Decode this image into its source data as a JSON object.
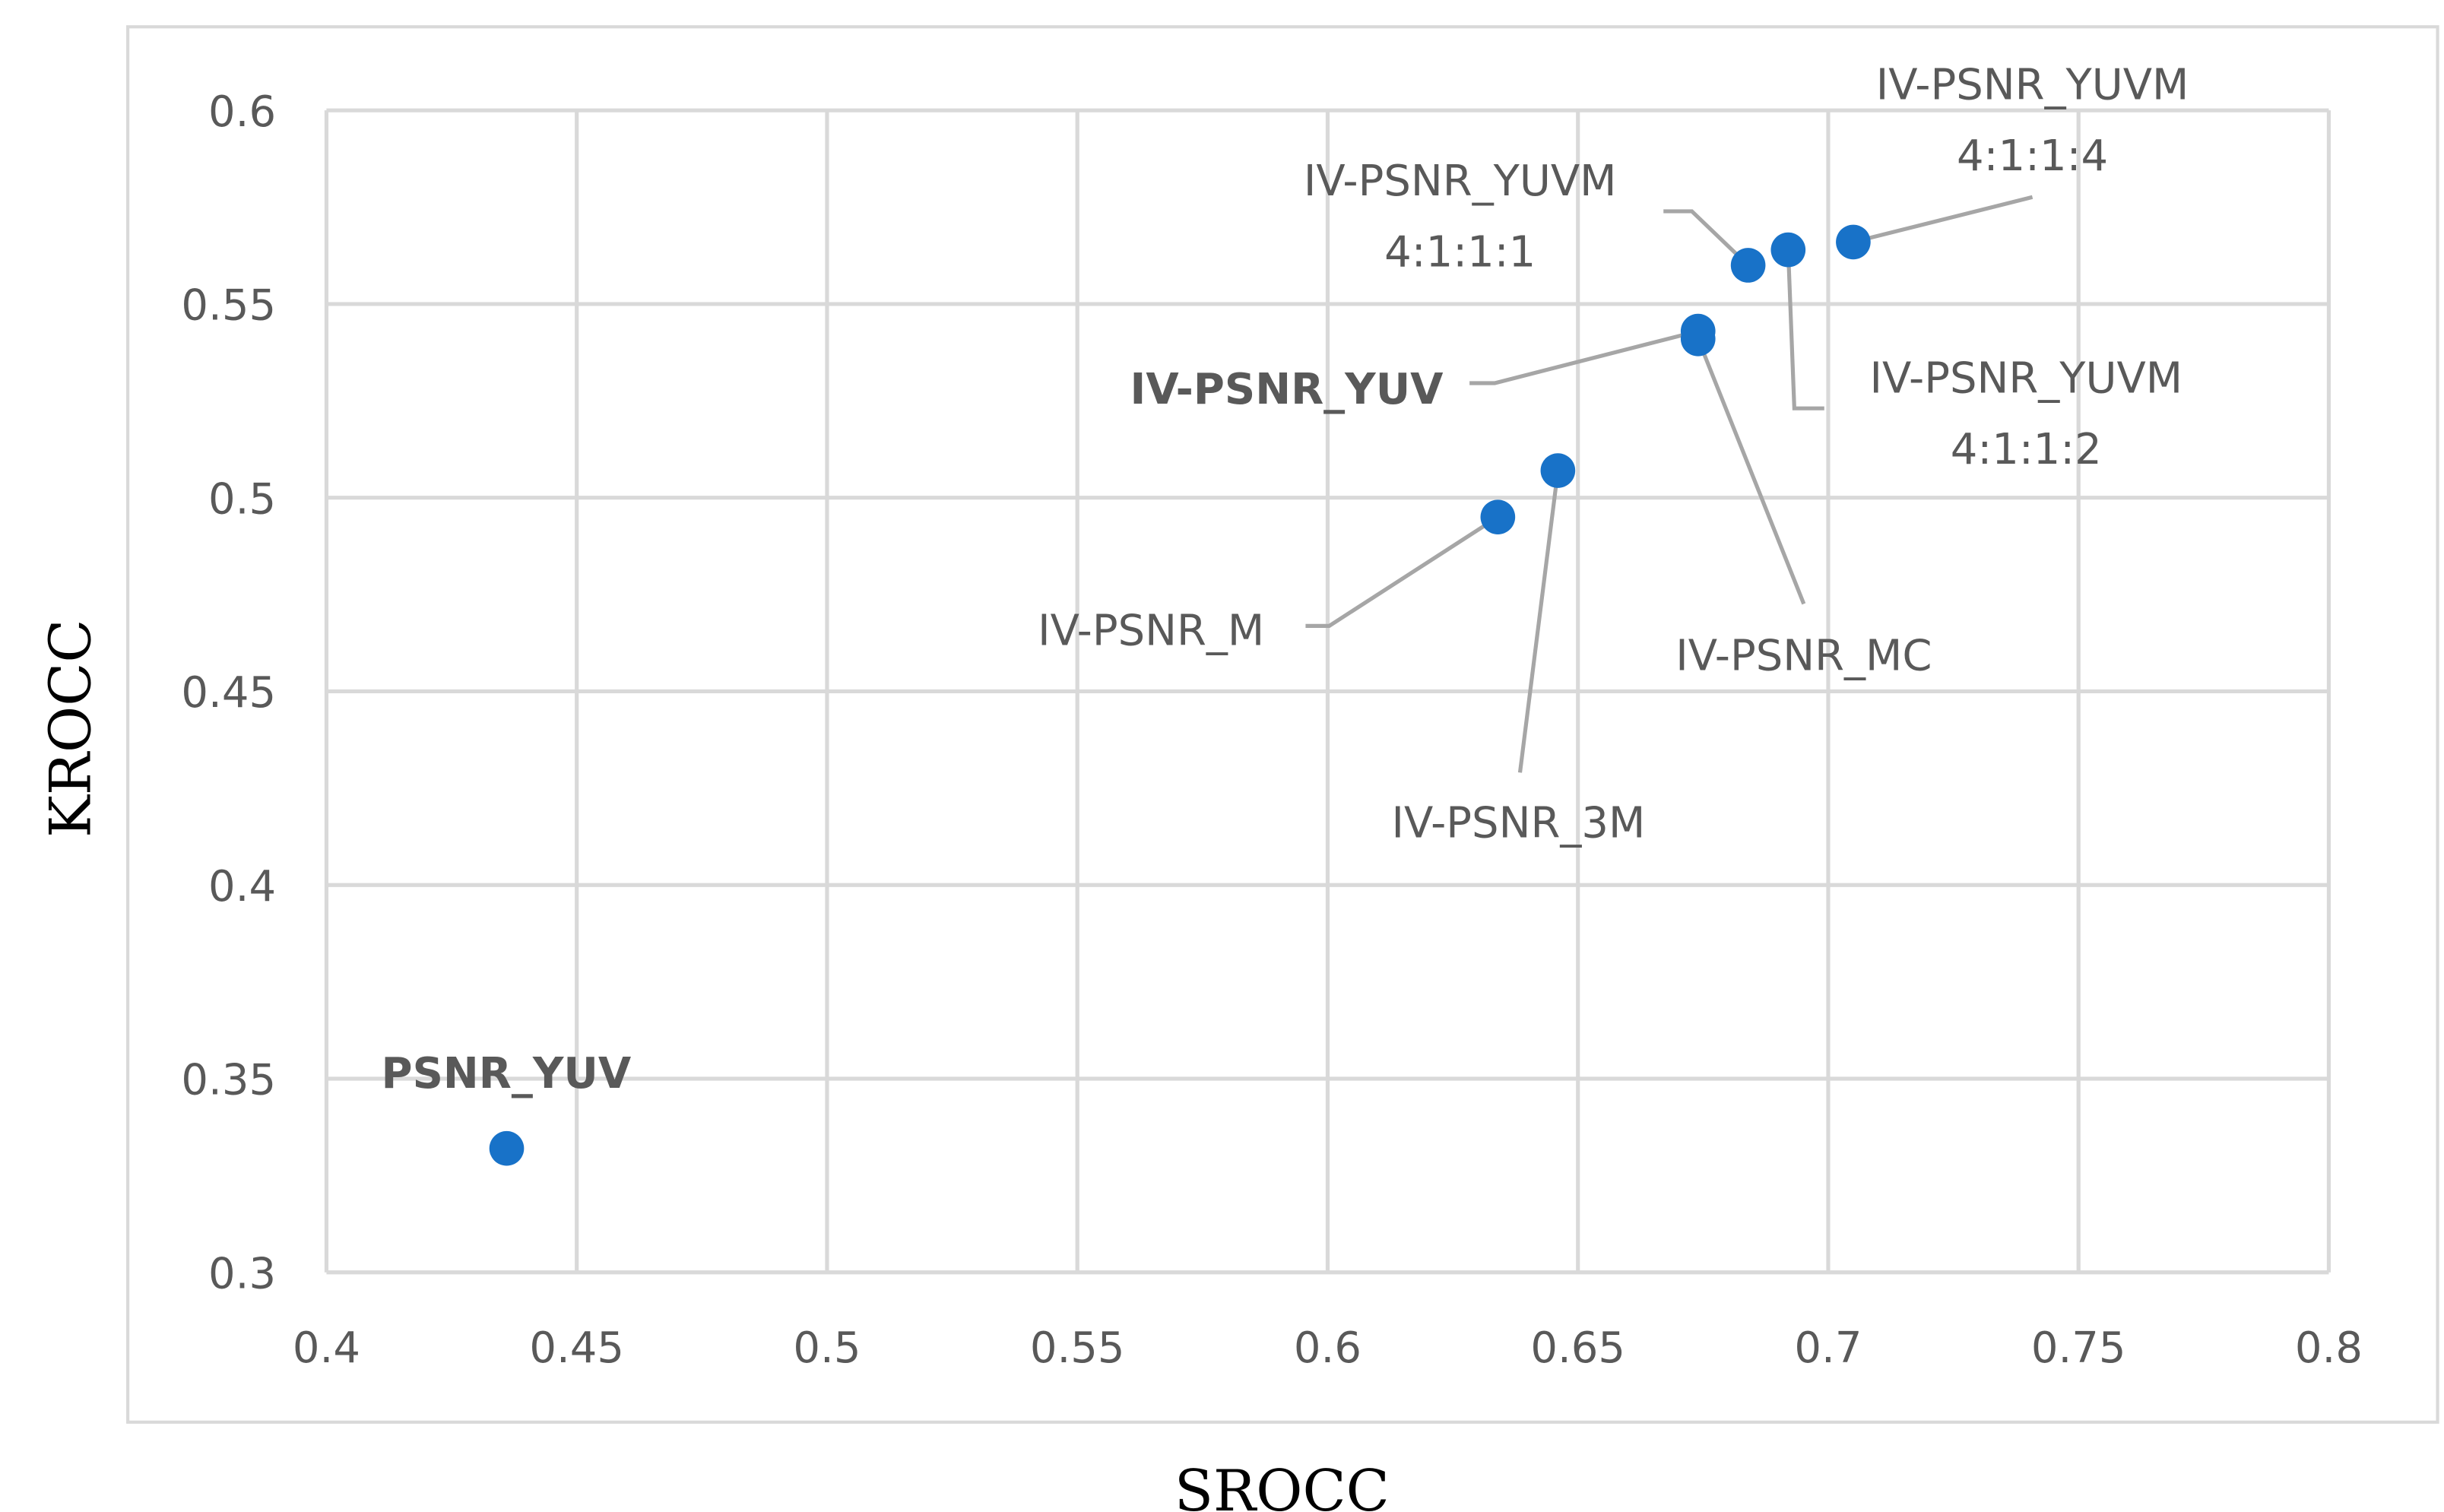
{
  "chart_data": {
    "type": "scatter",
    "title": "",
    "xlabel": "SROCC",
    "ylabel": "KROCC",
    "xlim": [
      0.4,
      0.8
    ],
    "ylim": [
      0.3,
      0.6
    ],
    "xticks": [
      "0.4",
      "0.45",
      "0.5",
      "0.55",
      "0.6",
      "0.65",
      "0.7",
      "0.75",
      "0.8"
    ],
    "yticks": [
      "0.3",
      "0.35",
      "0.4",
      "0.45",
      "0.5",
      "0.55",
      "0.6"
    ],
    "grid": true,
    "point_color": "#1872C8",
    "points": [
      {
        "name": "PSNR_YUV",
        "lines": [
          "PSNR_YUV"
        ],
        "bold": true,
        "x": 0.436,
        "y": 0.332
      },
      {
        "name": "IV-PSNR_M",
        "lines": [
          "IV-PSNR_M"
        ],
        "bold": false,
        "x": 0.634,
        "y": 0.495
      },
      {
        "name": "IV-PSNR_3M",
        "lines": [
          "IV-PSNR_3M"
        ],
        "bold": false,
        "x": 0.646,
        "y": 0.507
      },
      {
        "name": "IV-PSNR_YUV",
        "lines": [
          "IV-PSNR_YUV"
        ],
        "bold": true,
        "x": 0.674,
        "y": 0.543
      },
      {
        "name": "IV-PSNR_MC",
        "lines": [
          "IV-PSNR_MC"
        ],
        "bold": false,
        "x": 0.674,
        "y": 0.541
      },
      {
        "name": "IV-PSNR_YUVM 4:1:1:1",
        "lines": [
          "IV-PSNR_YUVM",
          "4:1:1:1"
        ],
        "bold": false,
        "x": 0.684,
        "y": 0.56
      },
      {
        "name": "IV-PSNR_YUVM 4:1:1:2",
        "lines": [
          "IV-PSNR_YUVM",
          "4:1:1:2"
        ],
        "bold": false,
        "x": 0.692,
        "y": 0.564
      },
      {
        "name": "IV-PSNR_YUVM 4:1:1:4",
        "lines": [
          "IV-PSNR_YUVM",
          "4:1:1:4"
        ],
        "bold": false,
        "x": 0.705,
        "y": 0.566
      }
    ]
  }
}
